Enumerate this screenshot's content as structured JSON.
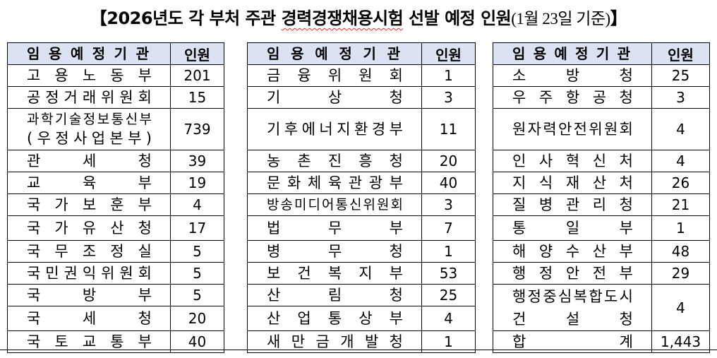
{
  "title": {
    "prefix": "【2026년도 각 부처 주관 ",
    "underlined": "경력경쟁채용시험",
    "middle": " 선발 예정 인원",
    "date_note": "(1월 23일 기준)",
    "suffix": "】"
  },
  "header": {
    "name": "임용예정기관",
    "count": "인원"
  },
  "tables": [
    {
      "rows": [
        {
          "name": [
            "고용노동부"
          ],
          "count": "201"
        },
        {
          "name": [
            "공정거래위원회"
          ],
          "count": "15"
        },
        {
          "name": [
            "과학기술정보통신부",
            "(우정사업본부)"
          ],
          "count": "739"
        },
        {
          "name": [
            "관세청"
          ],
          "count": "39"
        },
        {
          "name": [
            "교육부"
          ],
          "count": "19"
        },
        {
          "name": [
            "국가보훈부"
          ],
          "count": "4"
        },
        {
          "name": [
            "국가유산청"
          ],
          "count": "17"
        },
        {
          "name": [
            "국무조정실"
          ],
          "count": "5"
        },
        {
          "name": [
            "국민권익위원회"
          ],
          "count": "5"
        },
        {
          "name": [
            "국방부"
          ],
          "count": "5"
        },
        {
          "name": [
            "국세청"
          ],
          "count": "20"
        },
        {
          "name": [
            "국토교통부"
          ],
          "count": "40"
        }
      ]
    },
    {
      "rows": [
        {
          "name": [
            "금융위원회"
          ],
          "count": "1"
        },
        {
          "name": [
            "기상청"
          ],
          "count": "3"
        },
        {
          "name": [
            "기후에너지환경부"
          ],
          "count": "11"
        },
        {
          "name": [
            "농촌진흥청"
          ],
          "count": "20"
        },
        {
          "name": [
            "문화체육관광부"
          ],
          "count": "40"
        },
        {
          "name": [
            "방송미디어통신위원회"
          ],
          "count": "3"
        },
        {
          "name": [
            "법무부"
          ],
          "count": "7"
        },
        {
          "name": [
            "병무청"
          ],
          "count": "1"
        },
        {
          "name": [
            "보건복지부"
          ],
          "count": "53"
        },
        {
          "name": [
            "산림청"
          ],
          "count": "25"
        },
        {
          "name": [
            "산업통상부"
          ],
          "count": "4"
        },
        {
          "name": [
            "새만금개발청"
          ],
          "count": "1"
        }
      ]
    },
    {
      "rows": [
        {
          "name": [
            "소방청"
          ],
          "count": "25"
        },
        {
          "name": [
            "우주항공청"
          ],
          "count": "3"
        },
        {
          "name": [
            "원자력안전위원회"
          ],
          "count": "4"
        },
        {
          "name": [
            "인사혁신처"
          ],
          "count": "4"
        },
        {
          "name": [
            "지식재산처"
          ],
          "count": "26"
        },
        {
          "name": [
            "질병관리청"
          ],
          "count": "21"
        },
        {
          "name": [
            "통일부"
          ],
          "count": "1"
        },
        {
          "name": [
            "해양수산부"
          ],
          "count": "48"
        },
        {
          "name": [
            "행정안전부"
          ],
          "count": "29"
        },
        {
          "name": [
            "행정중심복합도시",
            "건설청"
          ],
          "count": "4",
          "span": 2
        },
        {
          "name": [
            "합계"
          ],
          "count": "1,443",
          "total": true
        }
      ]
    }
  ]
}
